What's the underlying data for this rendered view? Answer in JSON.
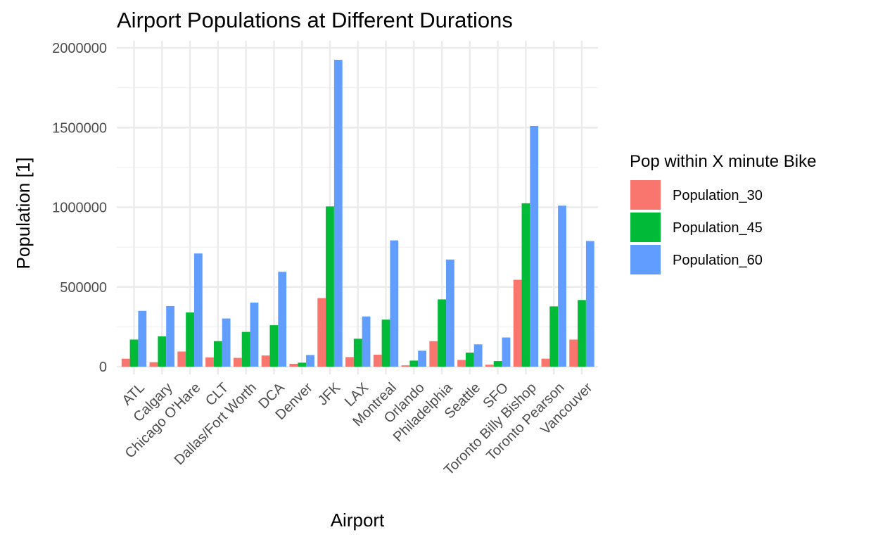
{
  "chart_data": {
    "type": "bar",
    "title": "Airport Populations at Different Durations",
    "xlabel": "Airport",
    "ylabel": "Population [1]",
    "ylim": [
      0,
      2000000
    ],
    "yticks": [
      0,
      500000,
      1000000,
      1500000,
      2000000
    ],
    "ytick_labels": [
      "0",
      "500000",
      "1000000",
      "1500000",
      "2000000"
    ],
    "grid": true,
    "legend_title": "Pop within X minute Bike",
    "legend_position": "right",
    "categories": [
      "ATL",
      "Calgary",
      "Chicago O'Hare",
      "CLT",
      "Dallas/Fort Worth",
      "DCA",
      "Denver",
      "JFK",
      "LAX",
      "Montreal",
      "Orlando",
      "Philadelphia",
      "Seattle",
      "SFO",
      "Toronto Billy Bishop",
      "Toronto Pearson",
      "Vancouver"
    ],
    "series": [
      {
        "name": "Population_30",
        "color": "#F8766D",
        "values": [
          50000,
          28000,
          95000,
          58000,
          55000,
          70000,
          18000,
          430000,
          60000,
          75000,
          8000,
          160000,
          42000,
          12000,
          545000,
          50000,
          170000
        ]
      },
      {
        "name": "Population_45",
        "color": "#00BA38",
        "values": [
          170000,
          190000,
          340000,
          160000,
          218000,
          260000,
          25000,
          1005000,
          175000,
          295000,
          38000,
          422000,
          88000,
          35000,
          1025000,
          378000,
          418000
        ]
      },
      {
        "name": "Population_60",
        "color": "#619CFF",
        "values": [
          350000,
          380000,
          710000,
          302000,
          402000,
          595000,
          73000,
          1925000,
          315000,
          792000,
          100000,
          672000,
          140000,
          183000,
          1510000,
          1010000,
          788000
        ]
      }
    ]
  }
}
